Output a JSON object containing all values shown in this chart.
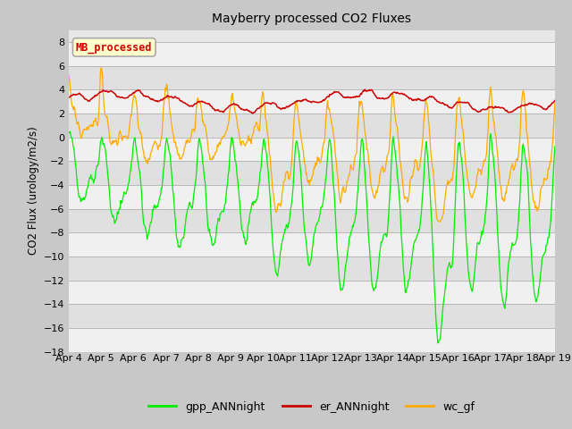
{
  "title": "Mayberry processed CO2 Fluxes",
  "ylabel": "CO2 Flux (urology/m2/s)",
  "ylim": [
    -18,
    9
  ],
  "yticks": [
    -18,
    -16,
    -14,
    -12,
    -10,
    -8,
    -6,
    -4,
    -2,
    0,
    2,
    4,
    6,
    8
  ],
  "fig_facecolor": "#c8c8c8",
  "plot_facecolor": "#e8e8e8",
  "band_colors": [
    "#f0f0f0",
    "#e0e0e0"
  ],
  "legend_label": "MB_processed",
  "legend_text_color": "#cc0000",
  "legend_bg": "#ffffcc",
  "legend_border": "#aaaaaa",
  "line_colors": {
    "gpp": "#00ee00",
    "er": "#cc0000",
    "wc": "#ffaa00"
  },
  "legend_entries": [
    "gpp_ANNnight",
    "er_ANNnight",
    "wc_gf"
  ],
  "x_labels": [
    "Apr 4",
    "Apr 5",
    "Apr 6",
    "Apr 7",
    "Apr 8",
    "Apr 9",
    "Apr 10",
    "Apr 11",
    "Apr 12",
    "Apr 13",
    "Apr 14",
    "Apr 15",
    "Apr 16",
    "Apr 17",
    "Apr 18",
    "Apr 19"
  ],
  "n_points": 720,
  "seed": 42
}
